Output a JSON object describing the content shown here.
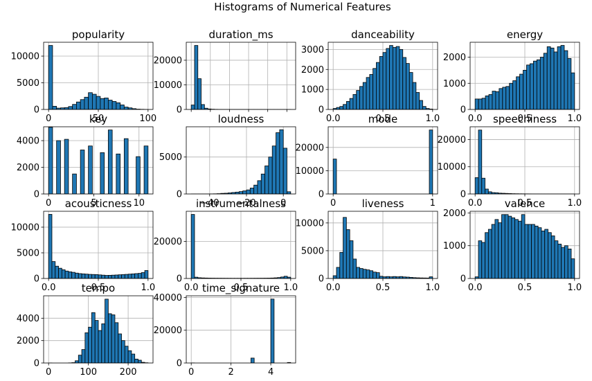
{
  "title": "Histograms of Numerical Features",
  "chart_data": [
    {
      "type": "bar",
      "title": "popularity",
      "bin_range": [
        0,
        100
      ],
      "values": [
        12000,
        600,
        250,
        300,
        350,
        550,
        950,
        1400,
        1850,
        2300,
        3150,
        2850,
        2450,
        2050,
        2150,
        1750,
        1500,
        1250,
        850,
        450,
        300,
        150,
        60,
        30,
        10
      ],
      "xlim": [
        -5,
        105
      ],
      "ylim": [
        0,
        12600
      ],
      "xticks": [
        0,
        50,
        100
      ],
      "yticks": [
        0,
        5000,
        10000
      ],
      "grid": true
    },
    {
      "type": "bar",
      "title": "duration_ms",
      "bin_range": [
        0,
        5200000
      ],
      "values": [
        1800,
        26000,
        12500,
        2000,
        500,
        200,
        100,
        50,
        30,
        20,
        15,
        10,
        8,
        6,
        5,
        4,
        3,
        2,
        2,
        1,
        1,
        1,
        1,
        1,
        1,
        1,
        1,
        1,
        1,
        1
      ],
      "xlim": [
        -260000,
        5460000
      ],
      "ylim": [
        0,
        27300
      ],
      "xticks": [
        0,
        1000000,
        2000000,
        3000000,
        4000000,
        5000000
      ],
      "xticklabels": [
        "",
        "",
        "",
        "",
        "",
        ""
      ],
      "yticks": [
        0,
        10000,
        20000
      ],
      "grid": true
    },
    {
      "type": "bar",
      "title": "danceability",
      "bin_range": [
        0,
        1
      ],
      "values": [
        50,
        100,
        150,
        250,
        400,
        550,
        750,
        950,
        1150,
        1350,
        1600,
        1750,
        2050,
        2350,
        2650,
        2850,
        3050,
        3200,
        3100,
        3150,
        3000,
        2600,
        2300,
        1850,
        1350,
        850,
        450,
        150,
        50,
        20
      ],
      "xlim": [
        -0.05,
        1.05
      ],
      "ylim": [
        0,
        3360
      ],
      "xticks": [
        0.0,
        0.5,
        1.0
      ],
      "xticklabels": [
        "0.0",
        "0.5",
        "1.0"
      ],
      "yticks": [
        0,
        1000,
        2000,
        3000
      ],
      "grid": true
    },
    {
      "type": "bar",
      "title": "energy",
      "bin_range": [
        0,
        1
      ],
      "values": [
        400,
        400,
        430,
        520,
        570,
        700,
        680,
        800,
        850,
        880,
        1000,
        1100,
        1250,
        1350,
        1500,
        1700,
        1750,
        1850,
        1900,
        2000,
        2150,
        2400,
        2350,
        2200,
        2400,
        2450,
        2250,
        1950,
        1400
      ],
      "xlim": [
        -0.05,
        1.05
      ],
      "ylim": [
        0,
        2570
      ],
      "xticks": [
        0.0,
        0.5,
        1.0
      ],
      "xticklabels": [
        "0.0",
        "0.5",
        "1.0"
      ],
      "yticks": [
        0,
        1000,
        2000
      ],
      "grid": true
    },
    {
      "type": "bar",
      "title": "key",
      "bin_range": [
        0,
        11
      ],
      "values": [
        5000,
        0,
        4000,
        0,
        4100,
        0,
        1500,
        0,
        3300,
        0,
        3600,
        0,
        0,
        3100,
        0,
        4800,
        0,
        3000,
        0,
        4150,
        0,
        0,
        2800,
        0,
        3600
      ],
      "xlim": [
        -0.55,
        11.55
      ],
      "ylim": [
        0,
        5040
      ],
      "xticks": [
        0,
        5,
        10
      ],
      "xticklabels": [
        "0",
        "5",
        "10"
      ],
      "yticks": [
        0,
        2000,
        4000
      ],
      "grid": true
    },
    {
      "type": "bar",
      "title": "loudness",
      "bin_range": [
        -50,
        4
      ],
      "values": [
        1,
        1,
        2,
        3,
        5,
        10,
        20,
        40,
        80,
        100,
        150,
        200,
        250,
        320,
        420,
        550,
        800,
        1200,
        1800,
        2700,
        3800,
        5000,
        6500,
        8300,
        8700,
        6200,
        300
      ],
      "xlim": [
        -52.7,
        6.7
      ],
      "ylim": [
        0,
        9100
      ],
      "xticks": [
        -40,
        -20,
        0
      ],
      "xticklabels": [
        "−40",
        "−20",
        "0"
      ],
      "yticks": [
        0,
        5000
      ],
      "grid": true
    },
    {
      "type": "bar",
      "title": "mode",
      "bin_range": [
        0,
        1
      ],
      "values": [
        15000,
        0,
        0,
        0,
        0,
        0,
        0,
        0,
        0,
        0,
        0,
        0,
        0,
        0,
        0,
        0,
        0,
        0,
        0,
        0,
        0,
        0,
        0,
        0,
        0,
        0,
        0,
        0,
        0,
        27500
      ],
      "xlim": [
        -0.05,
        1.05
      ],
      "ylim": [
        0,
        28875
      ],
      "xticks": [
        0,
        1
      ],
      "xticklabels": [
        "0",
        "1"
      ],
      "yticks": [
        0,
        10000,
        20000
      ],
      "grid": true
    },
    {
      "type": "bar",
      "title": "speechiness",
      "bin_range": [
        0,
        1
      ],
      "values": [
        6000,
        23500,
        5800,
        1800,
        800,
        500,
        450,
        300,
        250,
        200,
        150,
        100,
        80,
        60,
        50,
        40,
        30,
        20,
        15,
        12,
        10,
        8,
        6,
        5,
        4,
        3,
        2,
        2,
        1,
        1
      ],
      "xlim": [
        -0.05,
        1.05
      ],
      "ylim": [
        0,
        24700
      ],
      "xticks": [
        0.0,
        0.5,
        1.0
      ],
      "xticklabels": [
        "0.0",
        "0.5",
        "1.0"
      ],
      "yticks": [
        0,
        10000,
        20000
      ],
      "grid": true
    },
    {
      "type": "bar",
      "title": "acousticness",
      "bin_range": [
        0,
        1
      ],
      "values": [
        12500,
        3300,
        2400,
        2000,
        1700,
        1450,
        1300,
        1200,
        1050,
        950,
        900,
        850,
        800,
        780,
        760,
        700,
        650,
        600,
        620,
        650,
        680,
        720,
        760,
        800,
        850,
        900,
        950,
        1000,
        1150,
        1550
      ],
      "xlim": [
        -0.05,
        1.05
      ],
      "ylim": [
        0,
        13100
      ],
      "xticks": [
        0.0,
        0.5,
        1.0
      ],
      "xticklabels": [
        "0.0",
        "0.5",
        "1.0"
      ],
      "yticks": [
        0,
        5000,
        10000
      ],
      "grid": true
    },
    {
      "type": "bar",
      "title": "instrumentalness",
      "bin_range": [
        0,
        1
      ],
      "values": [
        34500,
        700,
        400,
        300,
        250,
        200,
        180,
        160,
        150,
        140,
        130,
        120,
        110,
        110,
        110,
        110,
        120,
        120,
        130,
        140,
        150,
        160,
        180,
        200,
        250,
        350,
        500,
        800,
        1200,
        700
      ],
      "xlim": [
        -0.05,
        1.05
      ],
      "ylim": [
        0,
        36200
      ],
      "xticks": [
        0.0,
        0.5,
        1.0
      ],
      "xticklabels": [
        "0.0",
        "0.5",
        "1.0"
      ],
      "yticks": [
        0,
        20000
      ],
      "grid": true
    },
    {
      "type": "bar",
      "title": "liveness",
      "bin_range": [
        0,
        1
      ],
      "values": [
        500,
        2000,
        4700,
        11000,
        8800,
        6800,
        3500,
        2000,
        1800,
        1650,
        1550,
        1400,
        1150,
        1050,
        400,
        300,
        350,
        300,
        350,
        300,
        350,
        280,
        250,
        200,
        150,
        120,
        100,
        90,
        80,
        300
      ],
      "xlim": [
        -0.05,
        1.05
      ],
      "ylim": [
        0,
        12100
      ],
      "xticks": [
        0.0,
        0.5,
        1.0
      ],
      "xticklabels": [
        "0.0",
        "0.5",
        "1.0"
      ],
      "yticks": [
        0,
        5000,
        10000
      ],
      "grid": true
    },
    {
      "type": "bar",
      "title": "valence",
      "bin_range": [
        0,
        1
      ],
      "values": [
        50,
        1150,
        1100,
        1400,
        1500,
        1650,
        1800,
        1700,
        1950,
        1950,
        1900,
        1850,
        1800,
        1750,
        1950,
        1650,
        1650,
        1650,
        1600,
        1550,
        1450,
        1500,
        1400,
        1300,
        1150,
        1050,
        950,
        1000,
        900,
        600
      ],
      "xlim": [
        -0.05,
        1.05
      ],
      "ylim": [
        0,
        2050
      ],
      "xticks": [
        0.0,
        0.5,
        1.0
      ],
      "xticklabels": [
        "0.0",
        "0.5",
        "1.0"
      ],
      "yticks": [
        0,
        1000,
        2000
      ],
      "grid": true
    },
    {
      "type": "bar",
      "title": "tempo",
      "bin_range": [
        0,
        250
      ],
      "values": [
        2,
        0,
        0,
        0,
        0,
        0,
        10,
        30,
        200,
        700,
        1200,
        2700,
        3200,
        4500,
        3800,
        2900,
        3500,
        5700,
        4400,
        4300,
        3600,
        2600,
        2000,
        1500,
        1100,
        800,
        350,
        250,
        60,
        20
      ],
      "xlim": [
        -12.5,
        262.5
      ],
      "ylim": [
        0,
        6000
      ],
      "xticks": [
        0,
        100,
        200
      ],
      "yticks": [
        0,
        2000,
        4000
      ],
      "grid": true
    },
    {
      "type": "bar",
      "title": "time_signature",
      "bin_range": [
        0,
        5
      ],
      "values": [
        50,
        0,
        0,
        0,
        0,
        0,
        0,
        0,
        0,
        0,
        0,
        0,
        0,
        0,
        0,
        0,
        0,
        0,
        3000,
        0,
        0,
        0,
        0,
        0,
        39000,
        0,
        0,
        0,
        0,
        300
      ],
      "xlim": [
        -0.25,
        5.25
      ],
      "ylim": [
        0,
        41000
      ],
      "xticks": [
        0,
        2,
        4
      ],
      "yticks": [
        0,
        20000,
        40000
      ],
      "grid": true
    }
  ]
}
